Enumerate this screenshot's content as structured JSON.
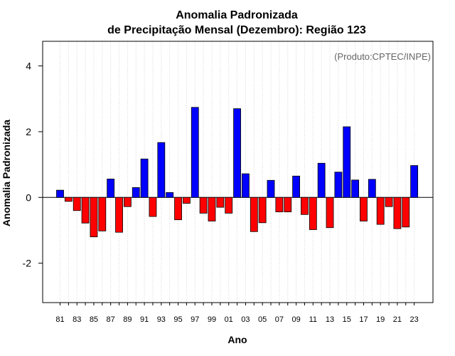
{
  "chart_data": {
    "type": "bar",
    "title": "Anomalia Padronizada",
    "subtitle": "de Precipitação Mensal (Dezembro): Região 123",
    "xlabel": "Ano",
    "ylabel": "Anomalia Padronizada",
    "credit": "(Produto:CPTEC/INPE)",
    "ylim": [
      -3.2,
      4.75
    ],
    "yticks": [
      -2,
      0,
      2,
      4
    ],
    "grid": "vertical dotted",
    "categories": [
      "81",
      "82",
      "83",
      "84",
      "85",
      "86",
      "87",
      "88",
      "89",
      "90",
      "91",
      "92",
      "93",
      "94",
      "95",
      "96",
      "97",
      "98",
      "99",
      "00",
      "01",
      "02",
      "03",
      "04",
      "05",
      "06",
      "07",
      "08",
      "09",
      "10",
      "11",
      "12",
      "13",
      "14",
      "15",
      "16",
      "17",
      "18",
      "19",
      "20",
      "21",
      "22",
      "23"
    ],
    "xtick_labels": [
      "81",
      "83",
      "85",
      "87",
      "89",
      "91",
      "93",
      "95",
      "97",
      "99",
      "01",
      "03",
      "05",
      "07",
      "09",
      "11",
      "13",
      "15",
      "17",
      "19",
      "21",
      "23"
    ],
    "values": [
      0.22,
      -0.12,
      -0.4,
      -0.78,
      -1.2,
      -1.02,
      0.56,
      -1.06,
      -0.28,
      0.3,
      1.17,
      -0.58,
      1.67,
      0.15,
      -0.68,
      -0.18,
      2.74,
      -0.48,
      -0.72,
      -0.3,
      -0.48,
      2.7,
      0.72,
      -1.04,
      -0.77,
      0.52,
      -0.44,
      -0.44,
      0.65,
      -0.52,
      -0.98,
      1.04,
      -0.92,
      0.77,
      2.15,
      0.53,
      -0.72,
      0.55,
      -0.82,
      -0.28,
      -0.95,
      -0.9,
      0.97
    ],
    "colors": {
      "positive": "#0000ff",
      "negative": "#ff0000",
      "border": "#000000",
      "grid": "#d3d3d3"
    }
  }
}
